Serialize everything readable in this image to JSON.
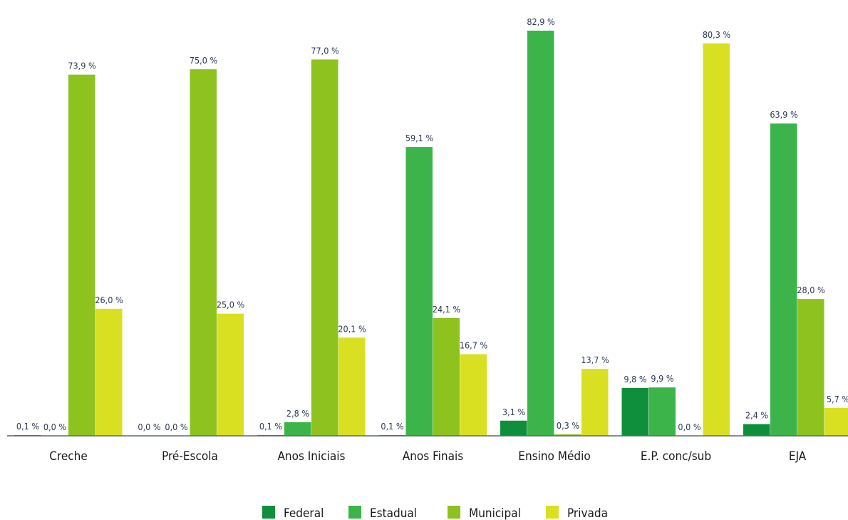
{
  "chart_data": {
    "type": "bar",
    "categories": [
      "Creche",
      "Pré-Escola",
      "Anos Iniciais",
      "Anos Finais",
      "Ensino Médio",
      "E.P. conc/sub",
      "EJA"
    ],
    "series": [
      {
        "name": "Federal",
        "color": "#0f8f3c",
        "values": [
          0.1,
          0.0,
          0.1,
          0.1,
          3.1,
          9.8,
          2.4
        ],
        "labels": [
          "0,1 %",
          "0,0 %",
          "0,1 %",
          "0,1 %",
          "3,1 %",
          "9,8 %",
          "2,4 %"
        ]
      },
      {
        "name": "Estadual",
        "color": "#3cb44a",
        "values": [
          0.0,
          0.0,
          2.8,
          59.1,
          82.9,
          9.9,
          63.9
        ],
        "labels": [
          "0,0 %",
          "0,0 %",
          "2,8 %",
          "59,1 %",
          "82,9 %",
          "9,9 %",
          "63,9 %"
        ]
      },
      {
        "name": "Municipal",
        "color": "#8dc21f",
        "values": [
          73.9,
          75.0,
          77.0,
          24.1,
          0.3,
          0.0,
          28.0
        ],
        "labels": [
          "73,9 %",
          "75,0 %",
          "77,0 %",
          "24,1 %",
          "0,3 %",
          "0,0 %",
          "28,0 %"
        ]
      },
      {
        "name": "Privada",
        "color": "#d9e021",
        "values": [
          26.0,
          25.0,
          20.1,
          16.7,
          13.7,
          80.3,
          5.7
        ],
        "labels": [
          "26,0 %",
          "25,0 %",
          "20,1 %",
          "16,7 %",
          "13,7 %",
          "80,3 %",
          "5,7 %"
        ]
      }
    ],
    "ylim": [
      0,
      90
    ],
    "title": "",
    "xlabel": "",
    "ylabel": "",
    "grid": false,
    "legend_position": "bottom-center"
  }
}
